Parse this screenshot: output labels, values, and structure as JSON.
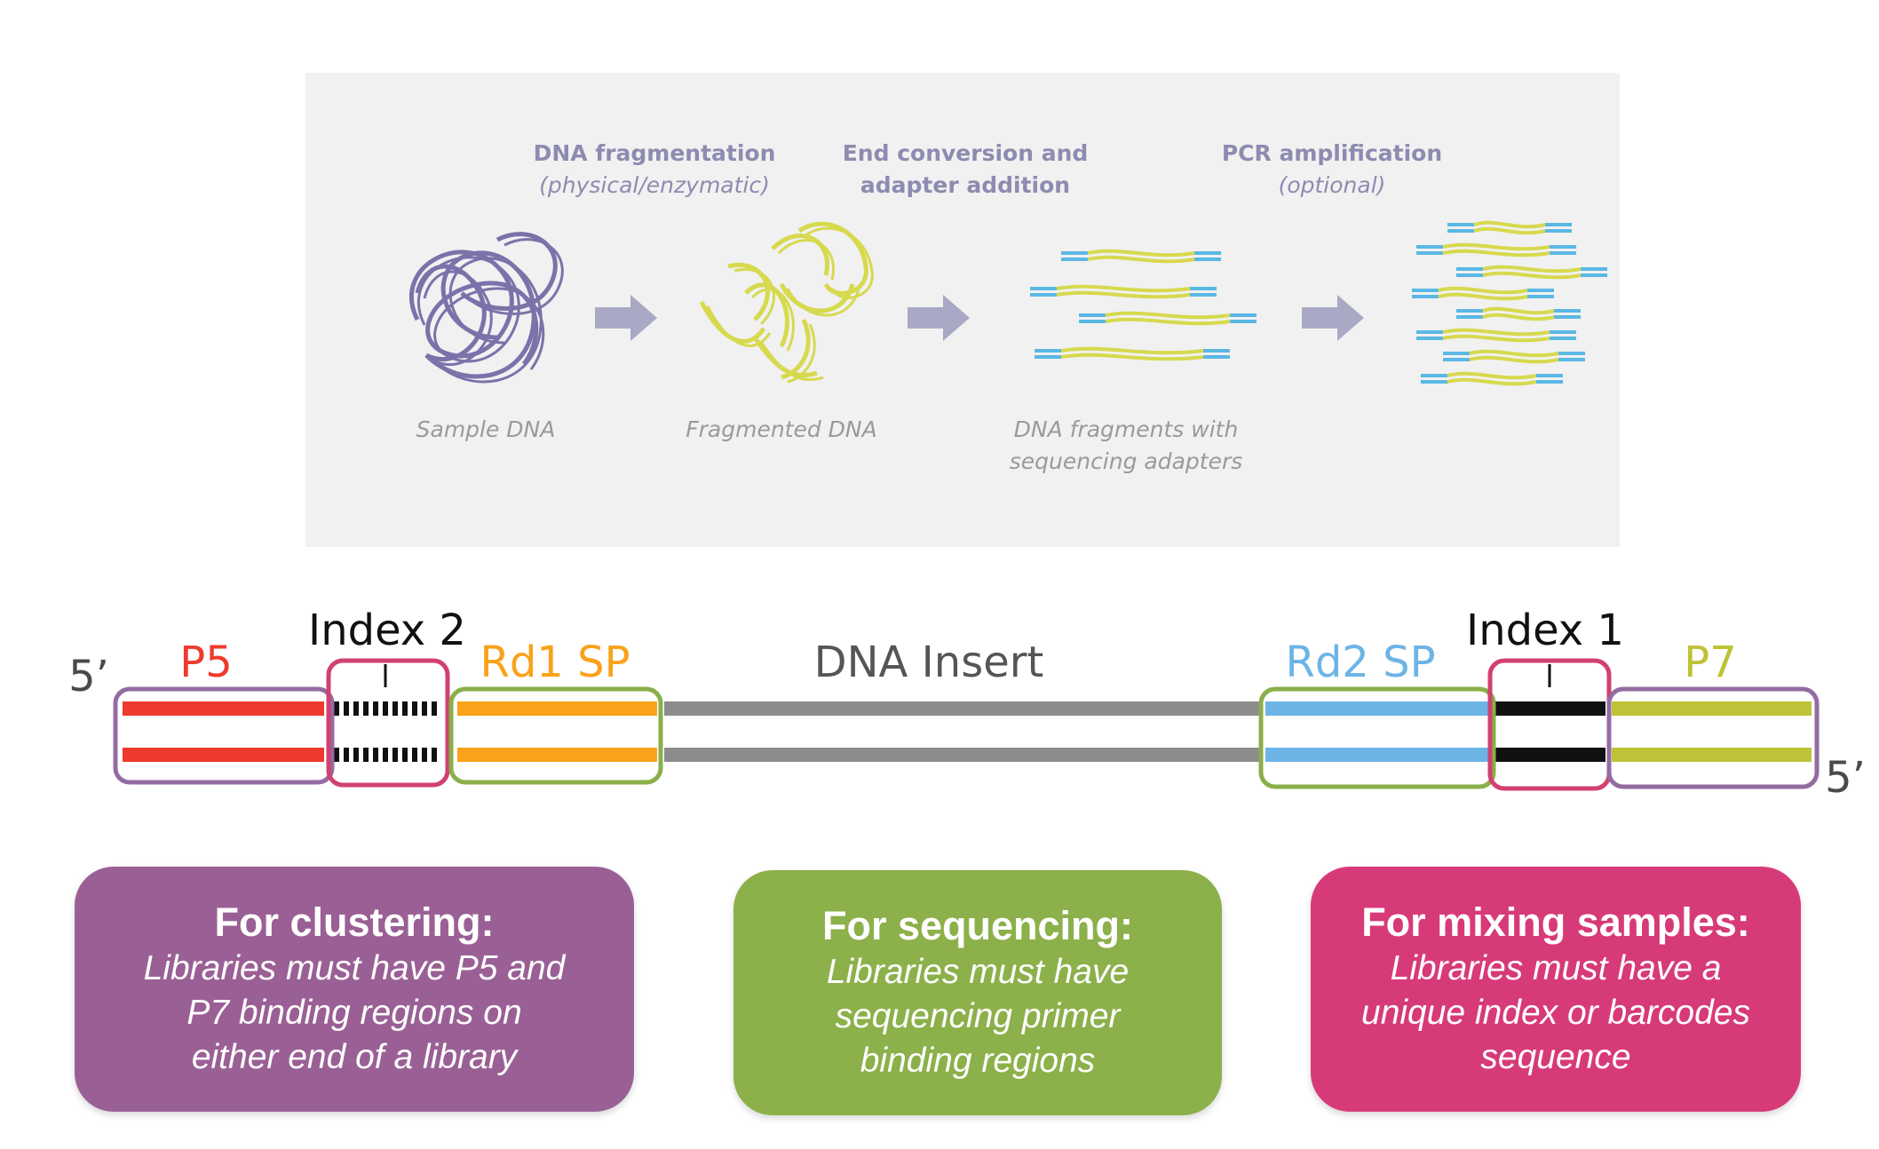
{
  "workflow": {
    "steps": [
      {
        "title": "DNA fragmentation",
        "subtitle": "(physical/enzymatic)"
      },
      {
        "title_line1": "End conversion and",
        "title_line2": "adapter addition"
      },
      {
        "title": "PCR amplification",
        "subtitle": "(optional)"
      }
    ],
    "captions": {
      "sample": "Sample DNA",
      "fragmented": "Fragmented DNA",
      "adapters_line1": "DNA fragments with",
      "adapters_line2": "sequencing adapters"
    }
  },
  "library": {
    "five_prime_left": "5’",
    "five_prime_right": "5’",
    "labels": {
      "p5": "P5",
      "index2": "Index 2",
      "rd1sp": "Rd1 SP",
      "insert": "DNA Insert",
      "rd2sp": "Rd2 SP",
      "index1": "Index 1",
      "p7": "P7"
    }
  },
  "boxes": [
    {
      "heading": "For clustering:",
      "lines": [
        "Libraries must have P5 and",
        "P7 binding regions on",
        "either end of a library"
      ]
    },
    {
      "heading": "For sequencing:",
      "lines": [
        "Libraries must have",
        "sequencing primer",
        "binding regions"
      ]
    },
    {
      "heading": "For mixing samples:",
      "lines": [
        "Libraries must have a",
        "unique index or barcodes",
        "sequence"
      ]
    }
  ],
  "colors": {
    "panel_bg": "#f1f1f1",
    "purple_dna": "#7c72aa",
    "yellow_dna": "#d7d94e",
    "adapter_blue": "#5ab8e4",
    "arrow_gray": "#a9a9c5",
    "p5_red": "#ee3a2d",
    "rd1_orange": "#f9a21a",
    "insert_gray": "#8c8c8c",
    "rd2_blue": "#6cb4e6",
    "p7_olive": "#bec236",
    "box_purple": "#9a6095",
    "box_green": "#8cb04a",
    "box_pink": "#d73a78",
    "outline_purple": "#946ba2",
    "outline_pink": "#d1416f",
    "outline_green": "#8aaf4a"
  }
}
